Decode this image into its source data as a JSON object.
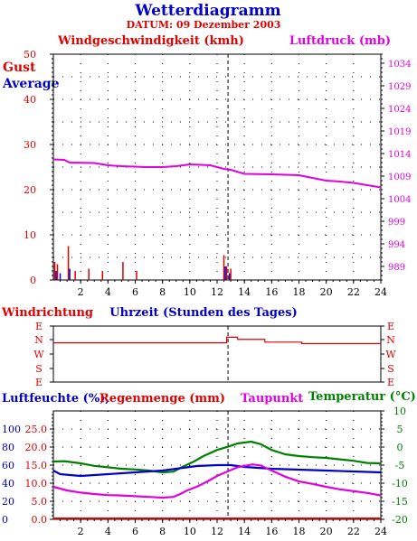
{
  "header": {
    "title": "Wetterdiagramm",
    "date": "DATUM: 09 Dezember 2003"
  },
  "colors": {
    "red": "#e00000",
    "blue": "#0000cc",
    "magenta": "#e000e0",
    "green": "#008000",
    "axis": "#000000",
    "grid": "#000000"
  },
  "chart_data": [
    {
      "type": "line",
      "name": "wind-pressure-panel",
      "labels": {
        "left_title": "Windgeschwindigkeit (kmh)",
        "right_title": "Luftdruck (mb)",
        "gust": "Gust",
        "average": "Average"
      },
      "x_ticks": [
        2,
        4,
        6,
        8,
        10,
        12,
        14,
        16,
        18,
        20,
        22,
        24
      ],
      "xlim": [
        0,
        24
      ],
      "ylim_left": [
        0,
        50
      ],
      "y_ticks_left": [
        0,
        10,
        20,
        30,
        40,
        50
      ],
      "ylim_right": [
        986,
        1036
      ],
      "y_ticks_right": [
        989,
        994,
        999,
        1004,
        1009,
        1014,
        1019,
        1024,
        1029,
        1034
      ],
      "marker_hour": 12.8,
      "series": [
        {
          "name": "Luftdruck",
          "axis": "right",
          "x": [
            0,
            0.8,
            1.2,
            3,
            4,
            5,
            6.8,
            8,
            9,
            10,
            10.8,
            11.5,
            12.5,
            13,
            14,
            16,
            18,
            19,
            20,
            21,
            22,
            23,
            24
          ],
          "values": [
            1012.7,
            1012.6,
            1012,
            1011.9,
            1011.4,
            1011.2,
            1011,
            1011,
            1011.2,
            1011.6,
            1011.5,
            1011.4,
            1010.6,
            1010.4,
            1009.5,
            1009.4,
            1009.2,
            1008.6,
            1008,
            1007.8,
            1007.5,
            1007,
            1006.5
          ]
        },
        {
          "name": "Gust",
          "axis": "left",
          "x": [
            0.1,
            0.3,
            1.1,
            1.6,
            2.6,
            3.6,
            5.1,
            6.1,
            12.5,
            12.7,
            13
          ],
          "values": [
            4,
            3.5,
            7.5,
            2,
            2.5,
            2,
            4,
            2,
            5.5,
            3,
            2.5
          ]
        },
        {
          "name": "Average",
          "axis": "left",
          "x": [
            0.2,
            0.5,
            1.2,
            12.6,
            12.9
          ],
          "values": [
            2,
            1.5,
            2.5,
            3,
            1.5
          ]
        }
      ]
    },
    {
      "type": "line",
      "name": "wind-direction-panel",
      "labels": {
        "left_title": "Windrichtung",
        "center_title": "Uhrzeit (Stunden des Tages)"
      },
      "direction_ticks": [
        "E",
        "N",
        "W",
        "S",
        "E"
      ],
      "marker_hour": 12.8,
      "series": [
        {
          "name": "Windrichtung",
          "x": [
            0,
            12.6,
            12.7,
            13.3,
            13.5,
            15.3,
            15.5,
            18,
            18.2,
            24
          ],
          "values": [
            2.8,
            2.8,
            3.2,
            3.2,
            3.05,
            3.05,
            2.85,
            2.85,
            2.75,
            2.75
          ]
        }
      ]
    },
    {
      "type": "line",
      "name": "humidity-temperature-panel",
      "labels": {
        "humidity": "Luftfeuchte (%),",
        "rain": "Regenmenge (mm)",
        "dewpoint": "Taupunkt",
        "temperature": "Temperatur (°C)"
      },
      "x_ticks": [
        2,
        4,
        6,
        8,
        10,
        12,
        14,
        16,
        18,
        20,
        22,
        24
      ],
      "xlim": [
        0,
        24
      ],
      "humidity_ticks": [
        0,
        20,
        40,
        60,
        80,
        100
      ],
      "rain_ticks": [
        "0.0",
        "5.0",
        "10.0",
        "15.0",
        "20.0",
        "25.0"
      ],
      "ylim_right": [
        -20,
        10
      ],
      "temperature_ticks": [
        10,
        5,
        0,
        -5,
        -10,
        -15,
        -20
      ],
      "marker_hour": 12.8,
      "series": [
        {
          "name": "Temperatur",
          "axis": "right",
          "x": [
            0,
            0.8,
            2,
            3,
            4,
            5,
            6,
            7,
            8,
            8.8,
            9.5,
            10.3,
            11,
            12,
            12.8,
            13.5,
            14.5,
            15.2,
            16,
            17,
            18,
            19,
            20,
            21,
            22,
            23,
            24
          ],
          "values": [
            -4,
            -3.9,
            -4.5,
            -5.2,
            -5.6,
            -6,
            -6.2,
            -6.5,
            -7,
            -6.8,
            -5.4,
            -4,
            -2.5,
            -0.8,
            0.1,
            1,
            1.5,
            0.8,
            -0.8,
            -2,
            -2.5,
            -2.8,
            -3,
            -3.4,
            -3.8,
            -4.4,
            -4.5
          ]
        },
        {
          "name": "Luftfeuchte",
          "axis": "left",
          "x": [
            0,
            0.5,
            2,
            4,
            6,
            8,
            9,
            10.5,
            12,
            13,
            14,
            15,
            16,
            18,
            20,
            22,
            24
          ],
          "values": [
            54,
            50,
            48,
            50,
            52,
            54,
            56,
            59,
            60,
            60,
            58,
            57,
            56,
            55,
            54,
            53,
            52
          ]
        },
        {
          "name": "Taupunkt",
          "axis": "right",
          "x": [
            0,
            1,
            2,
            3,
            4,
            5,
            6,
            7,
            8,
            8.8,
            9.3,
            9.8,
            10.5,
            11.3,
            12,
            12.8,
            13.5,
            14,
            14.6,
            15.2,
            16,
            17,
            18,
            19,
            20,
            21,
            22,
            23,
            24
          ],
          "values": [
            -11,
            -12,
            -12.6,
            -13,
            -13.3,
            -13.4,
            -13.6,
            -13.8,
            -14,
            -13.8,
            -13,
            -12,
            -11,
            -9.5,
            -8,
            -6.7,
            -5.6,
            -5.2,
            -4.8,
            -5.1,
            -6.5,
            -8.2,
            -9.5,
            -10.2,
            -11,
            -11.7,
            -12.2,
            -12.7,
            -13.4
          ]
        }
      ]
    }
  ]
}
